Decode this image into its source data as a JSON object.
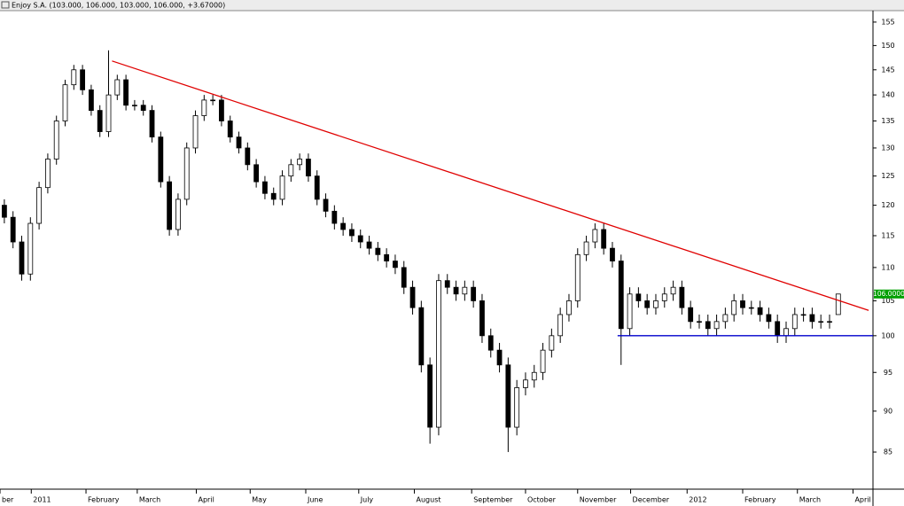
{
  "chart_data": {
    "type": "candlestick",
    "title": "Enjoy S.A. (103.000, 106.000, 103.000, 106.000, +3.67000)",
    "open": [
      120,
      118,
      114,
      109,
      117,
      123,
      128,
      135,
      142,
      145,
      141,
      137,
      133,
      140,
      143,
      138,
      138,
      137,
      132,
      124,
      116,
      121,
      130,
      136,
      139,
      139,
      135,
      132,
      130,
      127,
      124,
      122,
      121,
      125,
      127,
      128,
      125,
      121,
      119,
      117,
      116,
      115,
      114,
      113,
      112,
      111,
      110,
      107,
      104,
      96,
      88,
      108,
      107,
      106,
      107,
      105,
      100,
      98,
      96,
      88,
      93,
      94,
      95,
      98,
      100,
      103,
      105,
      112,
      114,
      116,
      113,
      111,
      101,
      106,
      105,
      104,
      105,
      106,
      107,
      104,
      102,
      102,
      101,
      102,
      103,
      105,
      104,
      104,
      103,
      102,
      100,
      101,
      103,
      103,
      102,
      102,
      103
    ],
    "high": [
      121,
      119,
      115,
      118,
      124,
      129,
      136,
      143,
      146,
      146,
      142,
      138,
      149,
      144,
      144,
      139,
      139,
      138,
      133,
      125,
      122,
      131,
      137,
      140,
      140,
      140,
      136,
      133,
      131,
      128,
      125,
      123,
      126,
      128,
      129,
      129,
      126,
      122,
      120,
      118,
      117,
      116,
      115,
      114,
      113,
      112,
      111,
      108,
      105,
      97,
      109,
      109,
      108,
      108,
      108,
      106,
      101,
      99,
      97,
      94,
      95,
      96,
      99,
      101,
      104,
      106,
      113,
      115,
      117,
      117,
      114,
      112,
      107,
      107,
      106,
      106,
      107,
      108,
      108,
      105,
      103,
      103,
      103,
      104,
      106,
      106,
      105,
      105,
      104,
      103,
      102,
      104,
      104,
      104,
      103,
      103,
      106
    ],
    "low": [
      117,
      113,
      108,
      108,
      116,
      122,
      127,
      134,
      141,
      140,
      136,
      132,
      132,
      139,
      137,
      137,
      136,
      131,
      123,
      115,
      115,
      120,
      129,
      135,
      138,
      134,
      131,
      129,
      126,
      123,
      121,
      120,
      120,
      124,
      126,
      124,
      120,
      118,
      116,
      115,
      114,
      113,
      112,
      111,
      110,
      109,
      106,
      103,
      95,
      86,
      87,
      106,
      105,
      105,
      104,
      99,
      97,
      95,
      85,
      87,
      92,
      93,
      94,
      97,
      99,
      102,
      104,
      111,
      113,
      112,
      110,
      96,
      100,
      104,
      103,
      103,
      104,
      105,
      103,
      101,
      101,
      100,
      100,
      101,
      102,
      103,
      103,
      102,
      101,
      99,
      99,
      100,
      102,
      101,
      101,
      101,
      103
    ],
    "close": [
      118,
      114,
      109,
      117,
      123,
      128,
      135,
      142,
      145,
      141,
      137,
      133,
      140,
      143,
      138,
      138,
      137,
      132,
      124,
      116,
      121,
      130,
      136,
      139,
      139,
      135,
      132,
      130,
      127,
      124,
      122,
      121,
      125,
      127,
      128,
      125,
      121,
      119,
      117,
      116,
      115,
      114,
      113,
      112,
      111,
      110,
      107,
      104,
      96,
      88,
      108,
      107,
      106,
      107,
      105,
      100,
      98,
      96,
      88,
      93,
      94,
      95,
      98,
      100,
      103,
      105,
      112,
      114,
      116,
      113,
      111,
      101,
      106,
      105,
      104,
      105,
      106,
      107,
      104,
      102,
      102,
      101,
      102,
      103,
      105,
      104,
      104,
      103,
      102,
      100,
      101,
      103,
      103,
      102,
      102,
      102,
      106
    ],
    "up_color": "#ffffff",
    "down_color": "#000000",
    "lines": [
      {
        "color": "#e00000",
        "x": [
          12.4,
          99.5
        ],
        "y": [
          146.8,
          103.6
        ]
      },
      {
        "color": "#0000cc",
        "x": [
          70.6,
          100
        ],
        "y": [
          100,
          100
        ]
      }
    ],
    "last_price": {
      "value": 106,
      "label": "106.0000"
    },
    "last_price_color": "#00a000",
    "log_scale": true,
    "xlim": [
      -0.5,
      100
    ],
    "xticks": [
      {
        "value": -0.5,
        "label": "ber"
      },
      {
        "value": 3.1,
        "label": "2011"
      },
      {
        "value": 9.4,
        "label": "February"
      },
      {
        "value": 15.3,
        "label": "March"
      },
      {
        "value": 22.1,
        "label": "April"
      },
      {
        "value": 28.3,
        "label": "May"
      },
      {
        "value": 34.7,
        "label": "June"
      },
      {
        "value": 40.8,
        "label": "July"
      },
      {
        "value": 47.2,
        "label": "August"
      },
      {
        "value": 53.8,
        "label": "September"
      },
      {
        "value": 60,
        "label": "October"
      },
      {
        "value": 66,
        "label": "November"
      },
      {
        "value": 72.1,
        "label": "December"
      },
      {
        "value": 78.6,
        "label": "2012"
      },
      {
        "value": 85,
        "label": "February"
      },
      {
        "value": 91.3,
        "label": "March"
      },
      {
        "value": 97.7,
        "label": "April"
      }
    ],
    "ylim": [
      80.7,
      157.5
    ],
    "yticks": [
      85,
      90,
      95,
      100,
      105,
      110,
      115,
      120,
      125,
      130,
      135,
      140,
      145,
      150,
      155
    ]
  }
}
